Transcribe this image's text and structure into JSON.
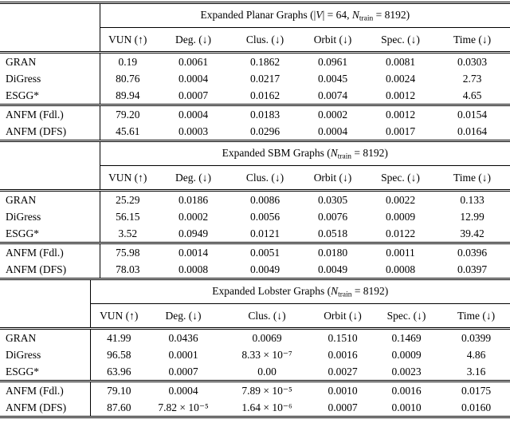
{
  "colors": {
    "text": "#000000",
    "background": "#ffffff",
    "rule": "#000000"
  },
  "columns": [
    "VUN (↑)",
    "Deg. (↓)",
    "Clus. (↓)",
    "Orbit (↓)",
    "Spec. (↓)",
    "Time (↓)"
  ],
  "tables": [
    {
      "title": "Expanded Planar Graphs (|V| = 64, N_train = 8192)",
      "title_parts": [
        {
          "t": "Expanded Planar Graphs (|"
        },
        {
          "t": "V",
          "s": "i"
        },
        {
          "t": "| = 64, "
        },
        {
          "t": "N",
          "s": "i"
        },
        {
          "t": "train",
          "s": "sub"
        },
        {
          "t": " = 8192)"
        }
      ],
      "rows": [
        {
          "label": "GRAN",
          "values": [
            "0.19",
            "0.0061",
            "0.1862",
            "0.0961",
            "0.0081",
            "0.0303"
          ]
        },
        {
          "label": "DiGress",
          "values": [
            "80.76",
            "0.0004",
            "0.0217",
            "0.0045",
            "0.0024",
            "2.73"
          ]
        },
        {
          "label": "ESGG*",
          "values": [
            "89.94",
            "0.0007",
            "0.0162",
            "0.0074",
            "0.0012",
            "4.65"
          ]
        },
        {
          "label": "ANFM (Fdl.)",
          "values": [
            "79.20",
            "0.0004",
            "0.0183",
            "0.0002",
            "0.0012",
            "0.0154"
          ]
        },
        {
          "label": "ANFM (DFS)",
          "values": [
            "45.61",
            "0.0003",
            "0.0296",
            "0.0004",
            "0.0017",
            "0.0164"
          ]
        }
      ]
    },
    {
      "title": "Expanded SBM Graphs (N_train = 8192)",
      "title_parts": [
        {
          "t": "Expanded SBM Graphs ("
        },
        {
          "t": "N",
          "s": "i"
        },
        {
          "t": "train",
          "s": "sub"
        },
        {
          "t": " = 8192)"
        }
      ],
      "rows": [
        {
          "label": "GRAN",
          "values": [
            "25.29",
            "0.0186",
            "0.0086",
            "0.0305",
            "0.0022",
            "0.133"
          ]
        },
        {
          "label": "DiGress",
          "values": [
            "56.15",
            "0.0002",
            "0.0056",
            "0.0076",
            "0.0009",
            "12.99"
          ]
        },
        {
          "label": "ESGG*",
          "values": [
            "3.52",
            "0.0949",
            "0.0121",
            "0.0518",
            "0.0122",
            "39.42"
          ]
        },
        {
          "label": "ANFM (Fdl.)",
          "values": [
            "75.98",
            "0.0014",
            "0.0051",
            "0.0180",
            "0.0011",
            "0.0396"
          ]
        },
        {
          "label": "ANFM (DFS)",
          "values": [
            "78.03",
            "0.0008",
            "0.0049",
            "0.0049",
            "0.0008",
            "0.0397"
          ]
        }
      ]
    },
    {
      "title": "Expanded Lobster Graphs (N_train = 8192)",
      "title_parts": [
        {
          "t": "Expanded Lobster Graphs ("
        },
        {
          "t": "N",
          "s": "i"
        },
        {
          "t": "train",
          "s": "sub"
        },
        {
          "t": " = 8192)"
        }
      ],
      "rows": [
        {
          "label": "GRAN",
          "values": [
            "41.99",
            "0.0436",
            "0.0069",
            "0.1510",
            "0.1469",
            "0.0399"
          ]
        },
        {
          "label": "DiGress",
          "values": [
            "96.58",
            "0.0001",
            "8.33 × 10⁻⁷",
            "0.0016",
            "0.0009",
            "4.86"
          ]
        },
        {
          "label": "ESGG*",
          "values": [
            "63.96",
            "0.0007",
            "0.00",
            "0.0027",
            "0.0023",
            "3.16"
          ]
        },
        {
          "label": "ANFM (Fdl.)",
          "values": [
            "79.10",
            "0.0004",
            "7.89 × 10⁻⁵",
            "0.0010",
            "0.0016",
            "0.0175"
          ]
        },
        {
          "label": "ANFM (DFS)",
          "values": [
            "87.60",
            "7.82 × 10⁻⁵",
            "1.64 × 10⁻⁶",
            "0.0007",
            "0.0010",
            "0.0160"
          ]
        }
      ]
    }
  ]
}
